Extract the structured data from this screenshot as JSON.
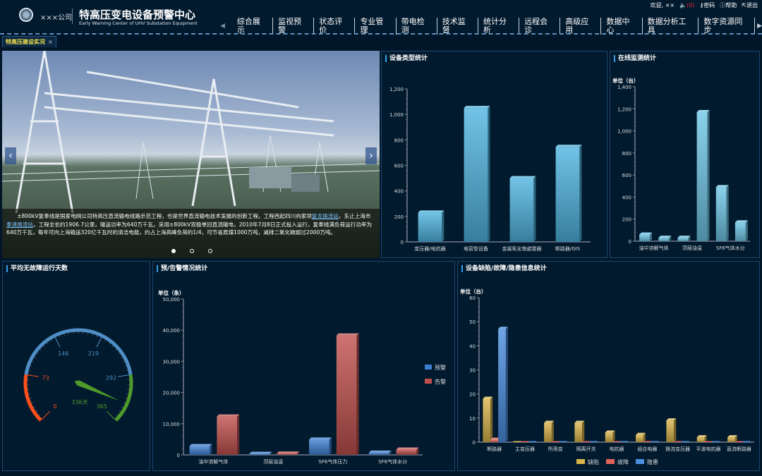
{
  "header": {
    "company": "×××公司",
    "title_cn": "特高压变电设备预警中心",
    "title_en": "Early Warning Center of UHV Substation Equipment",
    "user": {
      "welcome": "欢迎, ××",
      "sound_count": "(0)",
      "password": "密码",
      "help": "帮助",
      "logout": "退出"
    },
    "nav": [
      "综合展示",
      "监视预警",
      "状态评价",
      "专业管理",
      "带电检测",
      "技术监督",
      "统计分析",
      "远程会诊",
      "高级应用",
      "数据中心",
      "数据分析工具",
      "数字资源同步"
    ]
  },
  "tab": {
    "label": "特高压建设实况",
    "close": "×"
  },
  "carousel": {
    "caption_parts": [
      "±800kV复奉线是国家电网公司特高压直流输电线路示范工程，也是世界直流输电技术发展的创新工程。工程西起四川向家坝",
      "复龙换流站",
      "，东止上海市",
      "奉贤换流站",
      "，工程全长约1906.7公里，输送功率为640万千瓦，采用±800kV双极单回直流输电，2010年7月8日正式投入运行，复奉线满负荷运行功率为640万千瓦，每年可向上海输送320亿千瓦时的清洁电能，约占上海高峰负荷的1/4，可节省原煤1000万吨，减排二氧化碳超过2000万吨。"
    ],
    "slides": 3,
    "active": 0
  },
  "panels": {
    "device_type": "设备类型统计",
    "online": "在线监测统计",
    "gauge": "平均无故障运行天数",
    "alarm": "预/告警情况统计",
    "defect": "设备缺陷/故障/隐患信息统计"
  },
  "gauge": {
    "min": 0,
    "max": 365,
    "ticks": [
      0,
      73,
      146,
      219,
      292,
      365
    ],
    "value": 336,
    "value_label": "336天",
    "bands": [
      {
        "from": 0,
        "to": 73,
        "color": "#ff4f1a"
      },
      {
        "from": 73,
        "to": 292,
        "color": "#4f8ec6"
      },
      {
        "from": 292,
        "to": 365,
        "color": "#4f9a2a"
      }
    ]
  },
  "chart_data": [
    {
      "type": "bar",
      "id": "device_type",
      "categories": [
        "变压器/电抗器",
        "电容型设备",
        "金属氧化物避雷器",
        "断路器/GIS"
      ],
      "series": [
        {
          "values": [
            230,
            1050,
            500,
            745
          ],
          "color": "#4fb4e0"
        }
      ],
      "ylim": [
        0,
        1200
      ],
      "yticks": [
        0,
        200,
        400,
        600,
        800,
        1000,
        1200
      ],
      "ylabel": ""
    },
    {
      "type": "bar",
      "id": "online",
      "categories": [
        "油中溶解气体",
        "",
        "顶层油温",
        "",
        "SF6气体水分",
        ""
      ],
      "series": [
        {
          "values": [
            60,
            30,
            30,
            1170,
            490,
            170
          ],
          "color": "#6ec6e6"
        }
      ],
      "ylim": [
        0,
        1400
      ],
      "yticks": [
        0,
        200,
        400,
        600,
        800,
        1000,
        1200,
        1400
      ],
      "ylabel": "单位（台）"
    },
    {
      "type": "bar",
      "id": "alarm",
      "categories": [
        "油中溶解气体",
        "顶层油温",
        "SF6气体压力",
        "SF6气体水分"
      ],
      "series": [
        {
          "name": "预警",
          "values": [
            2800,
            300,
            4900,
            700
          ],
          "color": "#3d7fd0"
        },
        {
          "name": "告警",
          "values": [
            12300,
            400,
            38300,
            1700
          ],
          "color": "#c0504d"
        }
      ],
      "ylim": [
        0,
        50000
      ],
      "yticks": [
        0,
        10000,
        20000,
        30000,
        40000,
        50000
      ],
      "ylabel": "单位（条）",
      "legend": "right"
    },
    {
      "type": "bar",
      "id": "defect",
      "categories": [
        "断路器",
        "主变压器",
        "所用变",
        "隔离开关",
        "电抗器",
        "组合电器",
        "换流变压器",
        "平波电抗器",
        "直流断路器"
      ],
      "series": [
        {
          "name": "缺陷",
          "values": [
            18,
            0,
            8,
            8,
            4,
            3,
            9,
            2,
            2
          ],
          "color": "#d9b44a"
        },
        {
          "name": "故障",
          "values": [
            1,
            0,
            0,
            0,
            0,
            0,
            0,
            0,
            0
          ],
          "color": "#e0625a"
        },
        {
          "name": "隐患",
          "values": [
            47,
            0,
            0,
            0,
            0,
            0,
            0,
            0,
            0
          ],
          "color": "#4a8ee0"
        }
      ],
      "ylim": [
        0,
        60
      ],
      "yticks": [
        0,
        10,
        20,
        30,
        40,
        50,
        60
      ],
      "ylabel": "单位（台）",
      "legend": "bottom"
    }
  ]
}
